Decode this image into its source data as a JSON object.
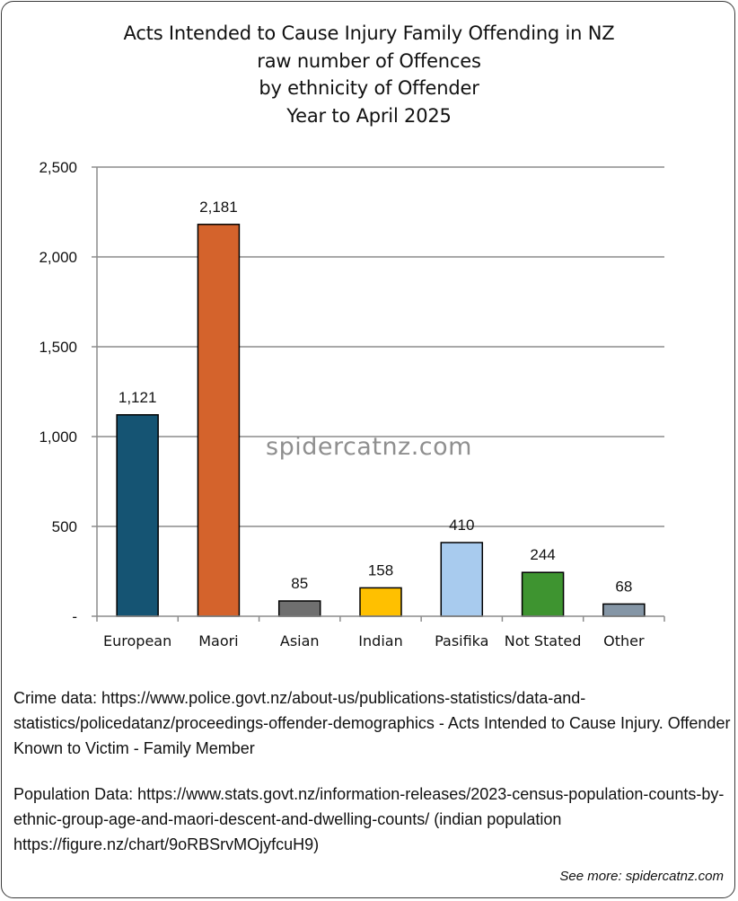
{
  "chart_data": {
    "type": "bar",
    "title": [
      "Acts Intended to Cause Injury Family Offending in NZ",
      "raw number of Offences",
      "by ethnicity of Offender",
      "Year to April 2025"
    ],
    "categories": [
      "European",
      "Maori",
      "Asian",
      "Indian",
      "Pasifika",
      "Not Stated",
      "Other"
    ],
    "values": [
      1121,
      2181,
      85,
      158,
      410,
      244,
      68
    ],
    "data_labels": [
      "1,121",
      "2,181",
      "85",
      "158",
      "410",
      "244",
      "68"
    ],
    "colors": [
      "#155473",
      "#d4632c",
      "#6f6f6f",
      "#ffc000",
      "#a8cbee",
      "#3e9430",
      "#8596a6"
    ],
    "ylim": [
      0,
      2500
    ],
    "yticks": [
      0,
      500,
      1000,
      1500,
      2000,
      2500
    ],
    "ytick_labels": [
      "-",
      "500",
      "1,000",
      "1,500",
      "2,000",
      "2,500"
    ],
    "xlabel": "",
    "ylabel": "",
    "grid": true,
    "legend": "none"
  },
  "watermark": "spidercatnz.com",
  "source_crime": "Crime data: https://www.police.govt.nz/about-us/publications-statistics/data-and-statistics/policedatanz/proceedings-offender-demographics -  Acts Intended to Cause Injury. Offender Known to Victim - Family Member",
  "source_population": "Population Data: https://www.stats.govt.nz/information-releases/2023-census-population-counts-by-ethnic-group-age-and-maori-descent-and-dwelling-counts/ (indian population https://figure.nz/chart/9oRBSrvMOjyfcuH9)",
  "see_more": "See more: spidercatnz.com"
}
